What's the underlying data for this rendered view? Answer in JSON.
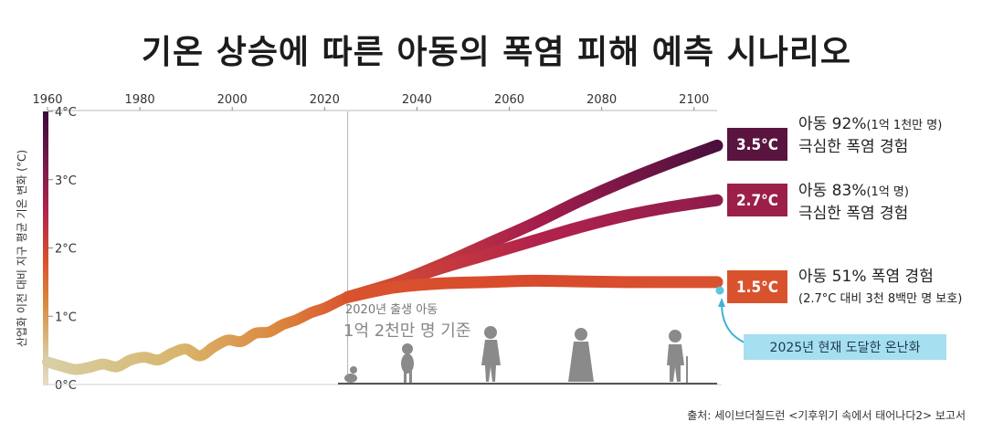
{
  "title": "기온 상승에 따른 아동의 폭염 피해 예측 시나리오",
  "source": "출처: 세이브더칠드런 <기후위기 속에서 태어나다2> 보고서",
  "chart_data": {
    "type": "line",
    "title": "기온 상승에 따른 아동의 폭염 피해 예측 시나리오",
    "ylabel": "산업화 이전 대비 지구 평균 기온 변화 (°C)",
    "xlim": [
      1960,
      2105
    ],
    "ylim": [
      0,
      4
    ],
    "x_ticks": [
      1960,
      1980,
      2000,
      2020,
      2040,
      2060,
      2080,
      2100
    ],
    "x_tick_labels": [
      "1960",
      "1980",
      "2000",
      "2020",
      "2040",
      "2060",
      "2080",
      "2100"
    ],
    "y_ticks": [
      0,
      1,
      2,
      3,
      4
    ],
    "y_tick_labels": [
      "0°C",
      "1°C",
      "2°C",
      "3°C",
      "4°C"
    ],
    "historical": {
      "x": [
        1960,
        1963,
        1966,
        1969,
        1972,
        1975,
        1978,
        1981,
        1984,
        1987,
        1990,
        1993,
        1996,
        1999,
        2002,
        2005,
        2008,
        2011,
        2014,
        2017,
        2020,
        2023,
        2025
      ],
      "y": [
        0.33,
        0.27,
        0.22,
        0.25,
        0.3,
        0.26,
        0.36,
        0.4,
        0.36,
        0.46,
        0.52,
        0.42,
        0.55,
        0.65,
        0.63,
        0.75,
        0.77,
        0.88,
        0.95,
        1.05,
        1.12,
        1.22,
        1.28
      ]
    },
    "series": [
      {
        "name": "3.5°C",
        "x": [
          2025,
          2035,
          2045,
          2055,
          2065,
          2075,
          2085,
          2095,
          2105
        ],
        "y": [
          1.28,
          1.48,
          1.75,
          2.05,
          2.35,
          2.68,
          2.98,
          3.25,
          3.5
        ]
      },
      {
        "name": "2.7°C",
        "x": [
          2025,
          2035,
          2045,
          2055,
          2065,
          2075,
          2085,
          2095,
          2105
        ],
        "y": [
          1.28,
          1.48,
          1.7,
          1.9,
          2.1,
          2.3,
          2.47,
          2.6,
          2.7
        ]
      },
      {
        "name": "1.5°C",
        "x": [
          2025,
          2035,
          2045,
          2055,
          2065,
          2075,
          2085,
          2095,
          2105
        ],
        "y": [
          1.28,
          1.42,
          1.48,
          1.5,
          1.52,
          1.51,
          1.5,
          1.5,
          1.5
        ]
      }
    ],
    "current_marker": {
      "x": 2105,
      "y": 1.35,
      "label": "2025년 현재 도달한 온난화"
    },
    "reference_year": 2025,
    "cohort_label_small": "2020년 출생 아동",
    "cohort_label_big": "1억 2천만 명 기준",
    "annotations": [
      {
        "badge": "3.5°C",
        "color": "#5a1440",
        "line1_main": "아동 92%",
        "line1_small": "(1억 1천만 명)",
        "line2": "극심한 폭염 경험"
      },
      {
        "badge": "2.7°C",
        "color": "#9c1f4a",
        "line1_main": "아동 83%",
        "line1_small": "(1억 명)",
        "line2": "극심한 폭염 경험"
      },
      {
        "badge": "1.5°C",
        "color": "#d9522e",
        "line1_main": "아동 51% 폭염 경험",
        "line1_small": "",
        "line2": "(2.7°C 대비 3천 8백만 명 보호)"
      }
    ]
  }
}
